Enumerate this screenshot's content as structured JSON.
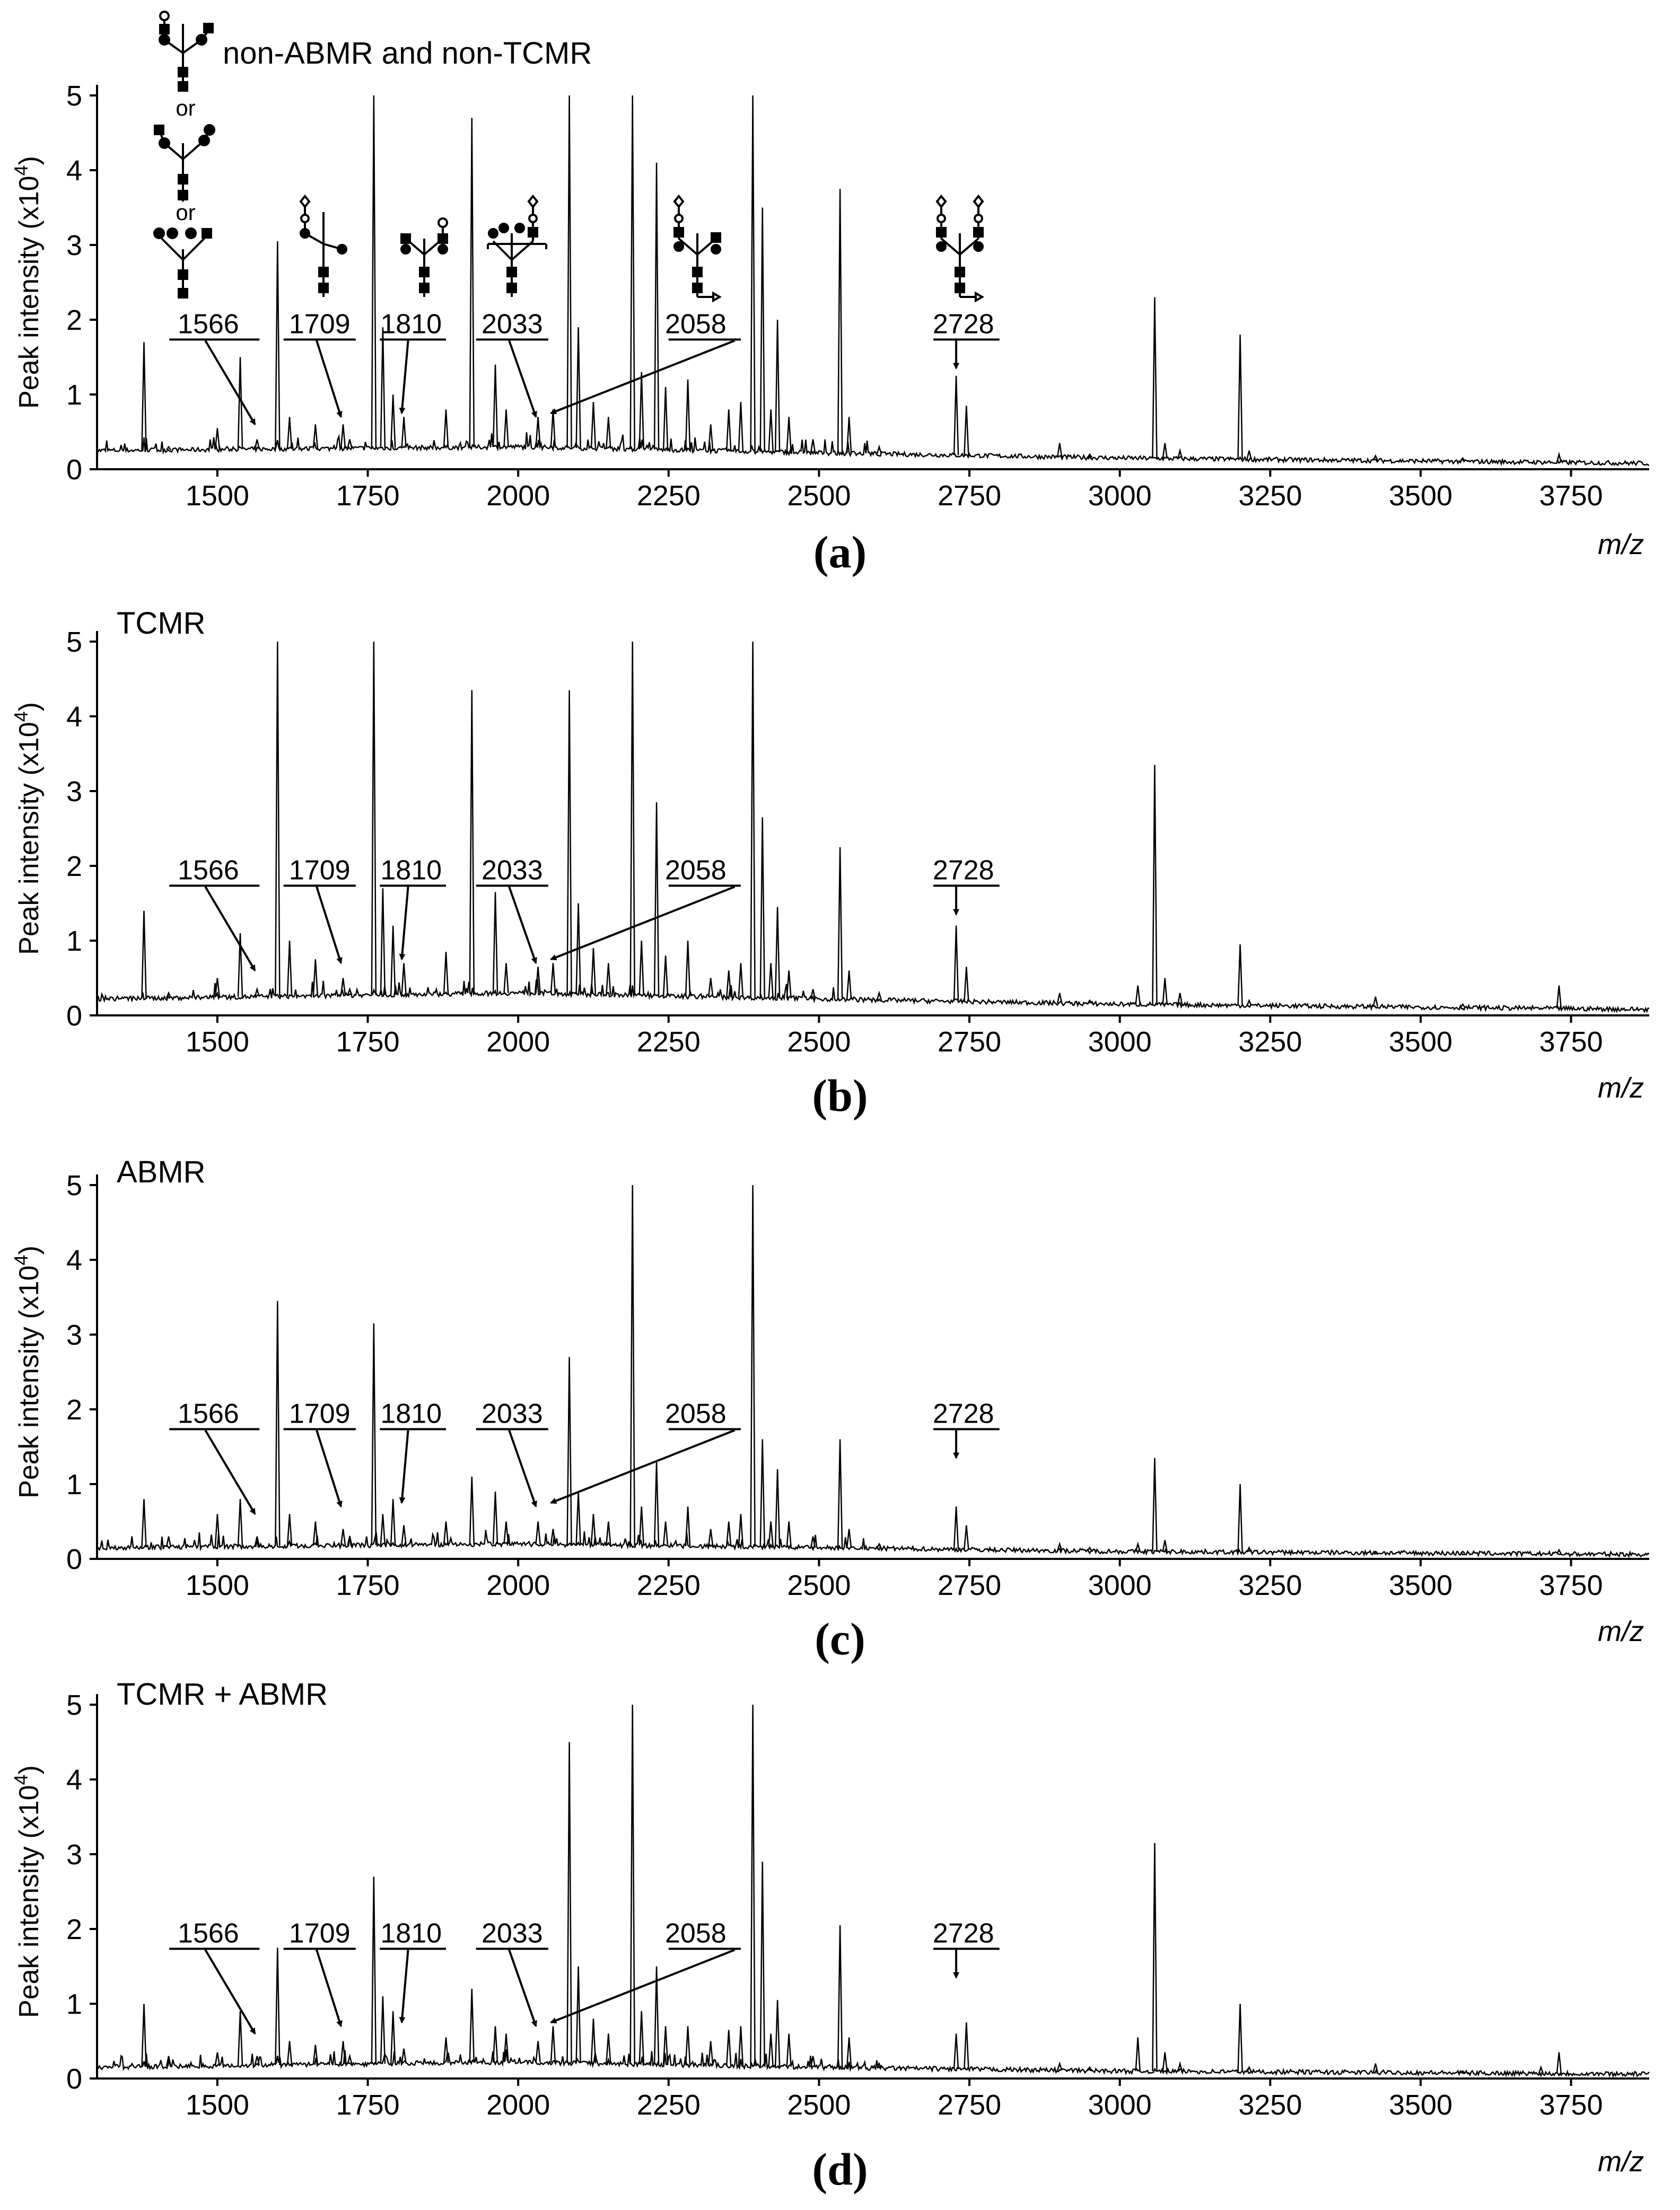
{
  "figure": {
    "xlabel": "m/z",
    "ylabel": "Peak intensity (x10",
    "ylabel_exp": "4",
    "ylabel_close": ")",
    "structure_connector": "or"
  },
  "chart_data": [
    {
      "type": "line",
      "panel": "(a)",
      "title": "non-ABMR and non-TCMR",
      "xlim": [
        1300,
        3880
      ],
      "ylim": [
        0,
        5
      ],
      "xticks": [
        1500,
        1750,
        2000,
        2250,
        2500,
        2750,
        3000,
        3250,
        3500,
        3750
      ],
      "yticks": [
        0,
        1,
        2,
        3,
        4,
        5
      ],
      "baseline": [
        [
          1300,
          0.25
        ],
        [
          2000,
          0.3
        ],
        [
          2500,
          0.22
        ],
        [
          3000,
          0.15
        ],
        [
          3880,
          0.08
        ]
      ],
      "peaks": [
        [
          1378,
          1.7
        ],
        [
          1419,
          0.3
        ],
        [
          1500,
          0.55
        ],
        [
          1538,
          1.5
        ],
        [
          1566,
          0.4
        ],
        [
          1600,
          3.05
        ],
        [
          1620,
          0.7
        ],
        [
          1663,
          0.6
        ],
        [
          1709,
          0.6
        ],
        [
          1720,
          0.4
        ],
        [
          1760,
          5.0
        ],
        [
          1775,
          1.9
        ],
        [
          1792,
          1.0
        ],
        [
          1810,
          0.7
        ],
        [
          1880,
          0.8
        ],
        [
          1923,
          4.7
        ],
        [
          1962,
          1.4
        ],
        [
          1980,
          0.8
        ],
        [
          2033,
          0.7
        ],
        [
          2058,
          0.8
        ],
        [
          2085,
          5.0
        ],
        [
          2100,
          1.9
        ],
        [
          2125,
          0.9
        ],
        [
          2150,
          0.7
        ],
        [
          2190,
          5.0
        ],
        [
          2205,
          1.3
        ],
        [
          2230,
          4.1
        ],
        [
          2245,
          1.1
        ],
        [
          2282,
          1.2
        ],
        [
          2320,
          0.6
        ],
        [
          2350,
          0.8
        ],
        [
          2370,
          0.9
        ],
        [
          2390,
          5.0
        ],
        [
          2406,
          3.5
        ],
        [
          2420,
          0.8
        ],
        [
          2431,
          2.0
        ],
        [
          2450,
          0.7
        ],
        [
          2490,
          0.4
        ],
        [
          2535,
          3.75
        ],
        [
          2550,
          0.7
        ],
        [
          2600,
          0.3
        ],
        [
          2728,
          1.25
        ],
        [
          2745,
          0.85
        ],
        [
          2900,
          0.35
        ],
        [
          2950,
          0.2
        ],
        [
          3058,
          2.3
        ],
        [
          3075,
          0.35
        ],
        [
          3100,
          0.25
        ],
        [
          3200,
          1.8
        ],
        [
          3215,
          0.25
        ],
        [
          3425,
          0.18
        ],
        [
          3570,
          0.15
        ],
        [
          3730,
          0.2
        ]
      ],
      "annotations": [
        {
          "label": "1566",
          "mz": 1566
        },
        {
          "label": "1709",
          "mz": 1709
        },
        {
          "label": "1810",
          "mz": 1810
        },
        {
          "label": "2033",
          "mz": 2033
        },
        {
          "label": "2058",
          "mz": 2058
        },
        {
          "label": "2728",
          "mz": 2728
        }
      ]
    },
    {
      "type": "line",
      "panel": "(b)",
      "title": "TCMR",
      "xlim": [
        1300,
        3880
      ],
      "ylim": [
        0,
        5
      ],
      "xticks": [
        1500,
        1750,
        2000,
        2250,
        2500,
        2750,
        3000,
        3250,
        3500,
        3750
      ],
      "yticks": [
        0,
        1,
        2,
        3,
        4,
        5
      ],
      "baseline": [
        [
          1300,
          0.22
        ],
        [
          2000,
          0.3
        ],
        [
          2500,
          0.22
        ],
        [
          3000,
          0.15
        ],
        [
          3880,
          0.08
        ]
      ],
      "peaks": [
        [
          1378,
          1.4
        ],
        [
          1419,
          0.3
        ],
        [
          1500,
          0.5
        ],
        [
          1538,
          1.1
        ],
        [
          1566,
          0.35
        ],
        [
          1600,
          5.0
        ],
        [
          1620,
          1.0
        ],
        [
          1663,
          0.75
        ],
        [
          1709,
          0.5
        ],
        [
          1720,
          0.35
        ],
        [
          1760,
          5.0
        ],
        [
          1775,
          1.7
        ],
        [
          1792,
          1.2
        ],
        [
          1810,
          0.7
        ],
        [
          1880,
          0.85
        ],
        [
          1923,
          4.35
        ],
        [
          1962,
          1.65
        ],
        [
          1980,
          0.7
        ],
        [
          2033,
          0.65
        ],
        [
          2058,
          0.7
        ],
        [
          2085,
          4.35
        ],
        [
          2100,
          1.5
        ],
        [
          2125,
          0.9
        ],
        [
          2150,
          0.7
        ],
        [
          2190,
          5.0
        ],
        [
          2205,
          1.0
        ],
        [
          2230,
          2.85
        ],
        [
          2245,
          0.8
        ],
        [
          2282,
          1.0
        ],
        [
          2320,
          0.5
        ],
        [
          2350,
          0.6
        ],
        [
          2370,
          0.7
        ],
        [
          2390,
          5.0
        ],
        [
          2406,
          2.65
        ],
        [
          2420,
          0.7
        ],
        [
          2431,
          1.45
        ],
        [
          2450,
          0.6
        ],
        [
          2490,
          0.35
        ],
        [
          2535,
          2.25
        ],
        [
          2550,
          0.6
        ],
        [
          2600,
          0.3
        ],
        [
          2728,
          1.2
        ],
        [
          2745,
          0.65
        ],
        [
          2900,
          0.3
        ],
        [
          2950,
          0.2
        ],
        [
          3030,
          0.4
        ],
        [
          3058,
          3.35
        ],
        [
          3075,
          0.5
        ],
        [
          3100,
          0.3
        ],
        [
          3200,
          0.95
        ],
        [
          3215,
          0.2
        ],
        [
          3425,
          0.25
        ],
        [
          3570,
          0.15
        ],
        [
          3730,
          0.4
        ]
      ],
      "annotations": [
        {
          "label": "1566",
          "mz": 1566
        },
        {
          "label": "1709",
          "mz": 1709
        },
        {
          "label": "1810",
          "mz": 1810
        },
        {
          "label": "2033",
          "mz": 2033
        },
        {
          "label": "2058",
          "mz": 2058
        },
        {
          "label": "2728",
          "mz": 2728
        }
      ]
    },
    {
      "type": "line",
      "panel": "(c)",
      "title": "ABMR",
      "xlim": [
        1300,
        3880
      ],
      "ylim": [
        0,
        5
      ],
      "xticks": [
        1500,
        1750,
        2000,
        2250,
        2500,
        2750,
        3000,
        3250,
        3500,
        3750
      ],
      "yticks": [
        0,
        1,
        2,
        3,
        4,
        5
      ],
      "baseline": [
        [
          1300,
          0.15
        ],
        [
          2000,
          0.2
        ],
        [
          2500,
          0.15
        ],
        [
          3000,
          0.1
        ],
        [
          3880,
          0.06
        ]
      ],
      "peaks": [
        [
          1378,
          0.8
        ],
        [
          1419,
          0.3
        ],
        [
          1500,
          0.6
        ],
        [
          1538,
          0.8
        ],
        [
          1566,
          0.3
        ],
        [
          1600,
          3.45
        ],
        [
          1620,
          0.6
        ],
        [
          1663,
          0.5
        ],
        [
          1709,
          0.4
        ],
        [
          1720,
          0.3
        ],
        [
          1760,
          3.15
        ],
        [
          1775,
          0.6
        ],
        [
          1792,
          0.8
        ],
        [
          1810,
          0.45
        ],
        [
          1880,
          0.5
        ],
        [
          1923,
          1.1
        ],
        [
          1962,
          0.9
        ],
        [
          1980,
          0.5
        ],
        [
          2033,
          0.5
        ],
        [
          2058,
          0.4
        ],
        [
          2085,
          2.7
        ],
        [
          2100,
          0.9
        ],
        [
          2125,
          0.6
        ],
        [
          2150,
          0.5
        ],
        [
          2190,
          5.0
        ],
        [
          2205,
          0.7
        ],
        [
          2230,
          1.3
        ],
        [
          2245,
          0.5
        ],
        [
          2282,
          0.7
        ],
        [
          2320,
          0.4
        ],
        [
          2350,
          0.5
        ],
        [
          2370,
          0.6
        ],
        [
          2390,
          5.0
        ],
        [
          2406,
          1.6
        ],
        [
          2420,
          0.5
        ],
        [
          2431,
          1.2
        ],
        [
          2450,
          0.5
        ],
        [
          2490,
          0.3
        ],
        [
          2535,
          1.6
        ],
        [
          2550,
          0.4
        ],
        [
          2600,
          0.2
        ],
        [
          2728,
          0.7
        ],
        [
          2745,
          0.45
        ],
        [
          2900,
          0.2
        ],
        [
          2950,
          0.15
        ],
        [
          3030,
          0.2
        ],
        [
          3058,
          1.35
        ],
        [
          3075,
          0.25
        ],
        [
          3200,
          1.0
        ],
        [
          3215,
          0.15
        ],
        [
          3425,
          0.1
        ],
        [
          3570,
          0.1
        ],
        [
          3730,
          0.12
        ]
      ],
      "annotations": [
        {
          "label": "1566",
          "mz": 1566
        },
        {
          "label": "1709",
          "mz": 1709
        },
        {
          "label": "1810",
          "mz": 1810
        },
        {
          "label": "2033",
          "mz": 2033
        },
        {
          "label": "2058",
          "mz": 2058
        },
        {
          "label": "2728",
          "mz": 2728
        }
      ]
    },
    {
      "type": "line",
      "panel": "(d)",
      "title": "TCMR + ABMR",
      "xlim": [
        1300,
        3880
      ],
      "ylim": [
        0,
        5
      ],
      "xticks": [
        1500,
        1750,
        2000,
        2250,
        2500,
        2750,
        3000,
        3250,
        3500,
        3750
      ],
      "yticks": [
        0,
        1,
        2,
        3,
        4,
        5
      ],
      "baseline": [
        [
          1300,
          0.15
        ],
        [
          2000,
          0.22
        ],
        [
          2500,
          0.15
        ],
        [
          3000,
          0.1
        ],
        [
          3880,
          0.06
        ]
      ],
      "peaks": [
        [
          1378,
          1.0
        ],
        [
          1419,
          0.3
        ],
        [
          1500,
          0.35
        ],
        [
          1538,
          0.9
        ],
        [
          1566,
          0.3
        ],
        [
          1600,
          1.75
        ],
        [
          1620,
          0.5
        ],
        [
          1663,
          0.45
        ],
        [
          1709,
          0.5
        ],
        [
          1720,
          0.3
        ],
        [
          1760,
          2.7
        ],
        [
          1775,
          1.1
        ],
        [
          1792,
          0.9
        ],
        [
          1810,
          0.4
        ],
        [
          1880,
          0.55
        ],
        [
          1923,
          1.2
        ],
        [
          1962,
          0.7
        ],
        [
          1980,
          0.6
        ],
        [
          2033,
          0.5
        ],
        [
          2058,
          0.7
        ],
        [
          2085,
          4.5
        ],
        [
          2100,
          1.5
        ],
        [
          2125,
          0.8
        ],
        [
          2150,
          0.6
        ],
        [
          2190,
          5.0
        ],
        [
          2205,
          0.9
        ],
        [
          2230,
          1.5
        ],
        [
          2245,
          0.7
        ],
        [
          2282,
          0.7
        ],
        [
          2320,
          0.5
        ],
        [
          2350,
          0.65
        ],
        [
          2370,
          0.7
        ],
        [
          2390,
          5.0
        ],
        [
          2406,
          2.9
        ],
        [
          2420,
          0.6
        ],
        [
          2431,
          1.05
        ],
        [
          2450,
          0.6
        ],
        [
          2490,
          0.3
        ],
        [
          2535,
          2.05
        ],
        [
          2550,
          0.55
        ],
        [
          2600,
          0.2
        ],
        [
          2728,
          0.6
        ],
        [
          2745,
          0.75
        ],
        [
          2900,
          0.2
        ],
        [
          2950,
          0.15
        ],
        [
          3030,
          0.55
        ],
        [
          3058,
          3.15
        ],
        [
          3075,
          0.35
        ],
        [
          3100,
          0.2
        ],
        [
          3200,
          1.0
        ],
        [
          3215,
          0.15
        ],
        [
          3425,
          0.2
        ],
        [
          3570,
          0.1
        ],
        [
          3700,
          0.15
        ],
        [
          3730,
          0.35
        ]
      ],
      "annotations": [
        {
          "label": "1566",
          "mz": 1566
        },
        {
          "label": "1709",
          "mz": 1709
        },
        {
          "label": "1810",
          "mz": 1810
        },
        {
          "label": "2033",
          "mz": 2033
        },
        {
          "label": "2058",
          "mz": 2058
        },
        {
          "label": "2728",
          "mz": 2728
        }
      ]
    }
  ]
}
